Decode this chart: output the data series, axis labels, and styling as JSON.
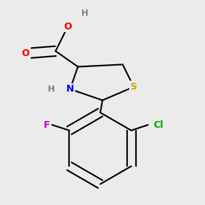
{
  "background_color": "#ebebeb",
  "atom_colors": {
    "C": "#000000",
    "H": "#708090",
    "N": "#0000ff",
    "O": "#ff0000",
    "S": "#ccaa00",
    "F": "#cc00cc",
    "Cl": "#00aa00"
  },
  "bond_color": "#000000",
  "bond_width": 1.6,
  "figsize": [
    3.0,
    3.0
  ],
  "dpi": 100
}
